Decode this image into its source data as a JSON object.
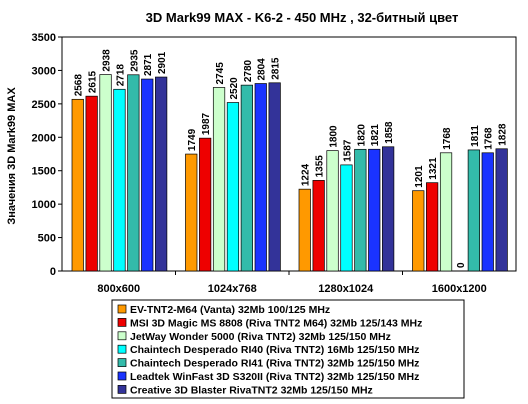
{
  "chart_data": {
    "type": "bar",
    "title": "3D Mark99 MAX - K6-2 - 450 MHz ,  32-битный цвет",
    "xlabel": "",
    "ylabel": "Значения 3D Mark99 MAX",
    "ylim": [
      0,
      3500
    ],
    "yticks": [
      "0",
      "500",
      "1000",
      "1500",
      "2000",
      "2500",
      "3000",
      "3500"
    ],
    "grid": false,
    "legend_placement": "bottom",
    "categories": [
      "800x600",
      "1024x768",
      "1280x1024",
      "1600x1200"
    ],
    "series": [
      {
        "name": "EV-TNT2-M64 (Vanta) 32Mb 100/125 MHz",
        "color": "#ff9900",
        "values": [
          2568,
          1749,
          1224,
          1201
        ],
        "labels": [
          "2568",
          "1749",
          "1224",
          "1201"
        ]
      },
      {
        "name": "MSI 3D Magic MS 8808 (Riva TNT2 M64) 32Mb 125/143 MHz",
        "color": "#ee0000",
        "values": [
          2615,
          1987,
          1355,
          1321
        ],
        "labels": [
          "2615",
          "1987",
          "1355",
          "1321"
        ]
      },
      {
        "name": "JetWay Wonder 5000 (Riva TNT2) 32Mb 125/150 MHz",
        "color": "#ccffcc",
        "values": [
          2938,
          2745,
          1800,
          1768
        ],
        "labels": [
          "2938",
          "2745",
          "1800",
          "1768"
        ]
      },
      {
        "name": "Chaintech Desperado RI40 (Riva TNT2) 16Mb 125/150 MHz",
        "color": "#00ffff",
        "values": [
          2718,
          2520,
          1587,
          0
        ],
        "labels": [
          "2718",
          "2520",
          "1587",
          "0"
        ]
      },
      {
        "name": "Chaintech Desperado RI41 (Riva TNT2) 32Mb 125/150 MHz",
        "color": "#33bbaa",
        "values": [
          2935,
          2780,
          1820,
          1811
        ],
        "labels": [
          "2935",
          "2780",
          "1820",
          "1811"
        ]
      },
      {
        "name": "Leadtek WinFast 3D S320II (Riva TNT2) 32Mb 125/150 MHz",
        "color": "#1a33ff",
        "values": [
          2871,
          2804,
          1821,
          1768
        ],
        "labels": [
          "2871",
          "2804",
          "1821",
          "1768"
        ]
      },
      {
        "name": "Creative 3D Blaster RivaTNT2 32Mb 125/150 MHz",
        "color": "#333399",
        "values": [
          2901,
          2815,
          1858,
          1828
        ],
        "labels": [
          "2901",
          "2815",
          "1858",
          "1828"
        ]
      }
    ]
  }
}
